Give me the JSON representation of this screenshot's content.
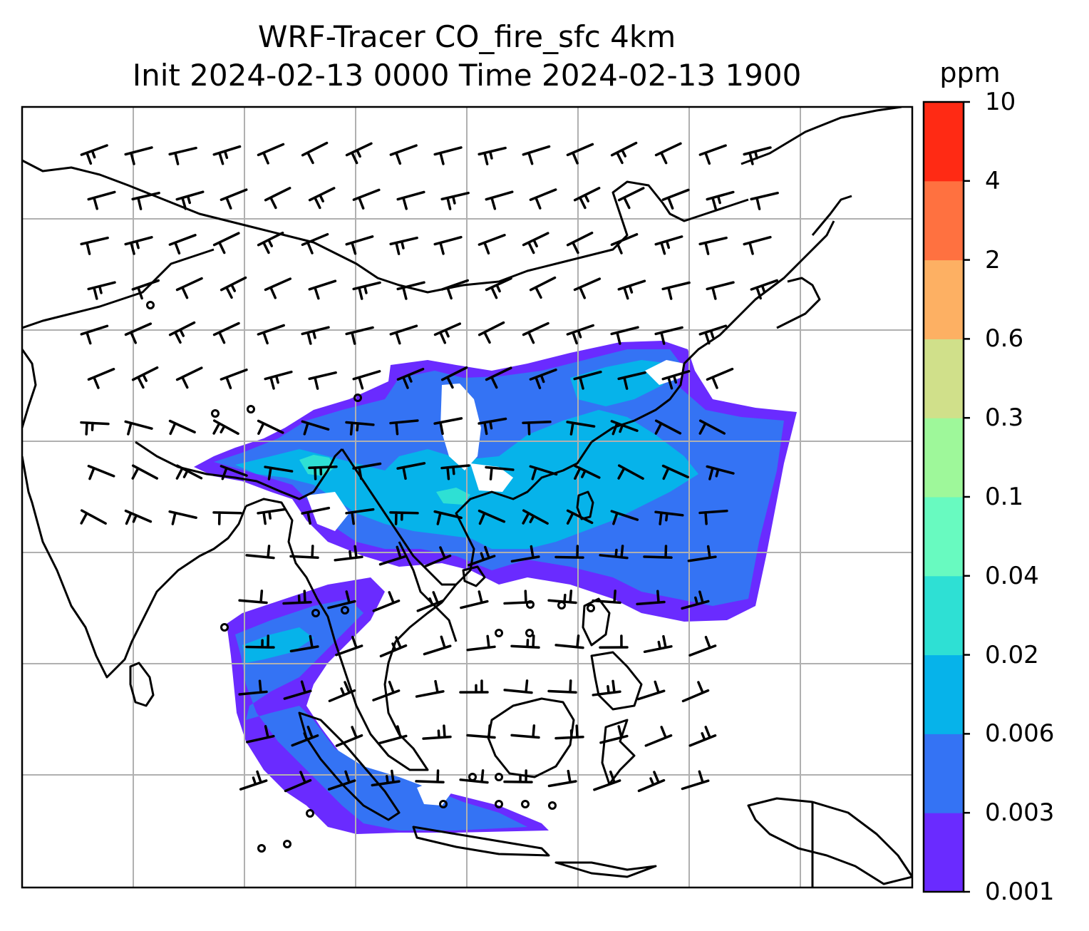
{
  "title": {
    "line1": "WRF-Tracer CO_fire_sfc 4km",
    "line2": "Init 2024-02-13 0000 Time 2024-02-13 1900"
  },
  "colorbar": {
    "unit": "ppm",
    "ticks": [
      "0.001",
      "0.003",
      "0.006",
      "0.02",
      "0.04",
      "0.1",
      "0.3",
      "0.6",
      "2",
      "4",
      "10"
    ],
    "colors": [
      "#6a2bff",
      "#3473f4",
      "#06b3ea",
      "#2ee0d4",
      "#68fac0",
      "#9ef89a",
      "#d0e08a",
      "#fdb063",
      "#ff7140",
      "#ff2a14"
    ]
  },
  "map": {
    "variable": "CO_fire_sfc",
    "gridlines": true,
    "wind_barbs": true,
    "coastlines": true,
    "country_borders": true
  }
}
